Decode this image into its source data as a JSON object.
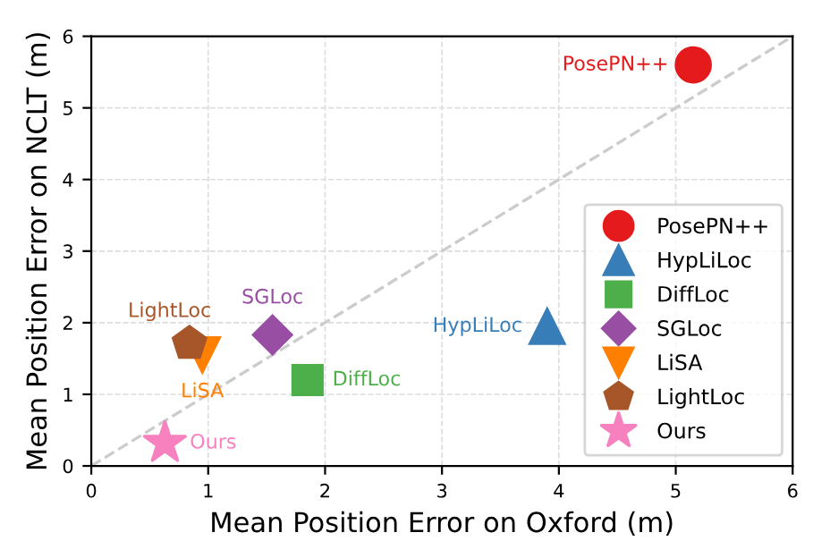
{
  "chart_data": {
    "type": "scatter",
    "xlabel": "Mean Position Error on Oxford (m)",
    "ylabel": "Mean Position Error on NCLT (m)",
    "xlim": [
      0,
      6
    ],
    "ylim": [
      0,
      6
    ],
    "xticks": [
      0,
      1,
      2,
      3,
      4,
      5,
      6
    ],
    "yticks": [
      0,
      1,
      2,
      3,
      4,
      5,
      6
    ],
    "grid": true,
    "legend": "bottom right",
    "series": [
      {
        "type": "line",
        "x": [
          0,
          6
        ],
        "values": [
          0,
          6
        ],
        "color": "#cccccc",
        "line_style": "dashed",
        "marker": "none"
      },
      {
        "name": "PosePN++",
        "x": [
          5.15
        ],
        "values": [
          5.6
        ],
        "color": "#e41a1c",
        "marker": "circle"
      },
      {
        "name": "HypLiLoc",
        "x": [
          3.9
        ],
        "values": [
          1.95
        ],
        "color": "#377eb8",
        "marker": "triangle"
      },
      {
        "name": "DiffLoc",
        "x": [
          1.85
        ],
        "values": [
          1.2
        ],
        "color": "#4daf4a",
        "marker": "square"
      },
      {
        "name": "SGLoc",
        "x": [
          1.55
        ],
        "values": [
          1.83
        ],
        "color": "#984ea3",
        "marker": "diamond"
      },
      {
        "name": "LiSA",
        "x": [
          0.95
        ],
        "values": [
          1.55
        ],
        "color": "#ff7f00",
        "marker": "triangle_down"
      },
      {
        "name": "LightLoc",
        "x": [
          0.84
        ],
        "values": [
          1.71
        ],
        "color": "#a65628"
      },
      {
        "name": "Ours",
        "x": [
          0.63
        ],
        "values": [
          0.32
        ],
        "color": "#f781bf",
        "marker": "star"
      }
    ],
    "annotations": [
      {
        "text": "PosePN++",
        "x": 5.15,
        "y": 5.6
      },
      {
        "text": "HypLiLoc",
        "x": 3.9,
        "y": 1.95
      },
      {
        "text": "DiffLoc",
        "x": 1.85,
        "y": 1.2
      },
      {
        "text": "SGLoc",
        "x": 1.55,
        "y": 1.83
      },
      {
        "text": "LiSA",
        "x": 0.95,
        "y": 1.55
      },
      {
        "text": "LightLoc",
        "x": 0.84,
        "y": 1.71
      },
      {
        "text": "Ours",
        "x": 0.63,
        "y": 0.32
      }
    ]
  }
}
